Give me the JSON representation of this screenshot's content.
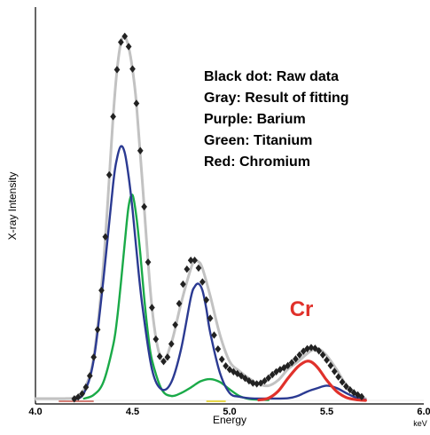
{
  "chart_data": {
    "type": "line",
    "title": "",
    "xlabel": "Energy",
    "ylabel": "X-ray Intensity",
    "x_unit": "keV",
    "xlim": [
      4.0,
      6.0
    ],
    "ylim": [
      0,
      1.0
    ],
    "x_ticks": [
      {
        "value": 4.0,
        "label": "4.0"
      },
      {
        "value": 4.5,
        "label": "4.5"
      },
      {
        "value": 5.0,
        "label": "5.0"
      },
      {
        "value": 5.5,
        "label": "5.5"
      },
      {
        "value": 6.0,
        "label": "6.0"
      }
    ],
    "legend_text": [
      "Black dot: Raw data",
      "Gray: Result of fitting",
      "Purple: Barium",
      "Green: Titanium",
      "Red: Chromium"
    ],
    "annotation": {
      "text": "Cr",
      "x": 5.37,
      "y": 0.23,
      "color": "#e0312b"
    },
    "grid": false,
    "legend_position": "top-right",
    "colors": {
      "raw": "#222222",
      "fit": "#c2c2c2",
      "barium": "#2b3a92",
      "titanium": "#1aaa48",
      "chromium": "#e0312b",
      "baseline_yellow": "#e8d84a",
      "baseline_red": "#c0392b"
    },
    "series": [
      {
        "name": "Black dot: Raw data",
        "style": "diamond-markers",
        "x": [
          4.2,
          4.22,
          4.24,
          4.26,
          4.28,
          4.3,
          4.32,
          4.34,
          4.36,
          4.38,
          4.4,
          4.42,
          4.44,
          4.46,
          4.48,
          4.5,
          4.52,
          4.54,
          4.56,
          4.58,
          4.6,
          4.62,
          4.64,
          4.66,
          4.68,
          4.7,
          4.72,
          4.74,
          4.76,
          4.78,
          4.8,
          4.82,
          4.84,
          4.86,
          4.88,
          4.9,
          4.92,
          4.94,
          4.96,
          4.98,
          5.0,
          5.02,
          5.04,
          5.06,
          5.08,
          5.1,
          5.12,
          5.14,
          5.16,
          5.18,
          5.2,
          5.22,
          5.24,
          5.26,
          5.28,
          5.3,
          5.32,
          5.34,
          5.36,
          5.38,
          5.4,
          5.42,
          5.44,
          5.46,
          5.48,
          5.5,
          5.52,
          5.54,
          5.56,
          5.58,
          5.6,
          5.62,
          5.64,
          5.66,
          5.68
        ],
        "values": [
          0.004,
          0.009,
          0.018,
          0.036,
          0.067,
          0.118,
          0.193,
          0.3,
          0.446,
          0.615,
          0.774,
          0.902,
          0.977,
          0.993,
          0.965,
          0.904,
          0.81,
          0.681,
          0.528,
          0.377,
          0.253,
          0.167,
          0.12,
          0.106,
          0.118,
          0.154,
          0.206,
          0.264,
          0.317,
          0.358,
          0.382,
          0.382,
          0.361,
          0.323,
          0.274,
          0.224,
          0.178,
          0.14,
          0.112,
          0.094,
          0.084,
          0.078,
          0.073,
          0.067,
          0.06,
          0.053,
          0.047,
          0.045,
          0.047,
          0.053,
          0.061,
          0.07,
          0.078,
          0.084,
          0.089,
          0.095,
          0.103,
          0.113,
          0.124,
          0.134,
          0.141,
          0.144,
          0.142,
          0.135,
          0.124,
          0.11,
          0.095,
          0.079,
          0.064,
          0.05,
          0.038,
          0.029,
          0.021,
          0.015,
          0.01
        ]
      },
      {
        "name": "Gray: Result of fitting",
        "style": "line",
        "x": [
          4.0,
          4.05,
          4.1,
          4.15,
          4.2,
          4.25,
          4.3,
          4.35,
          4.4,
          4.42,
          4.44,
          4.46,
          4.48,
          4.5,
          4.52,
          4.55,
          4.6,
          4.65,
          4.7,
          4.75,
          4.8,
          4.82,
          4.84,
          4.86,
          4.9,
          4.95,
          5.0,
          5.05,
          5.1,
          5.15,
          5.2,
          5.25,
          5.3,
          5.35,
          5.4,
          5.43,
          5.46,
          5.5,
          5.55,
          5.6,
          5.65,
          5.7
        ],
        "values": [
          0.005,
          0.005,
          0.005,
          0.005,
          0.008,
          0.03,
          0.118,
          0.37,
          0.772,
          0.9,
          0.975,
          0.991,
          0.963,
          0.902,
          0.809,
          0.6,
          0.253,
          0.11,
          0.157,
          0.265,
          0.359,
          0.38,
          0.378,
          0.36,
          0.285,
          0.179,
          0.106,
          0.08,
          0.06,
          0.045,
          0.04,
          0.055,
          0.085,
          0.105,
          0.128,
          0.138,
          0.14,
          0.122,
          0.085,
          0.042,
          0.015,
          0.005
        ]
      },
      {
        "name": "Purple: Barium",
        "style": "line",
        "x": [
          4.2,
          4.25,
          4.3,
          4.35,
          4.4,
          4.42,
          4.44,
          4.46,
          4.48,
          4.5,
          4.52,
          4.55,
          4.6,
          4.65,
          4.7,
          4.75,
          4.8,
          4.82,
          4.84,
          4.86,
          4.88,
          4.9,
          4.95,
          5.0,
          5.05,
          5.1,
          5.15,
          5.2,
          5.3,
          5.35,
          5.4,
          5.45,
          5.5,
          5.55,
          5.6,
          5.65,
          5.7
        ],
        "values": [
          0.002,
          0.02,
          0.11,
          0.33,
          0.59,
          0.66,
          0.693,
          0.675,
          0.61,
          0.52,
          0.41,
          0.26,
          0.085,
          0.03,
          0.05,
          0.14,
          0.28,
          0.31,
          0.318,
          0.3,
          0.25,
          0.185,
          0.075,
          0.02,
          0.01,
          0.006,
          0.005,
          0.005,
          0.006,
          0.012,
          0.024,
          0.033,
          0.04,
          0.034,
          0.02,
          0.008,
          0.002
        ]
      },
      {
        "name": "Green: Titanium",
        "style": "line",
        "x": [
          4.25,
          4.3,
          4.35,
          4.4,
          4.42,
          4.44,
          4.46,
          4.48,
          4.5,
          4.52,
          4.54,
          4.56,
          4.58,
          4.6,
          4.65,
          4.7,
          4.75,
          4.8,
          4.85,
          4.9,
          4.95,
          5.0,
          5.05,
          5.1,
          5.15,
          5.2
        ],
        "values": [
          0.005,
          0.015,
          0.05,
          0.15,
          0.22,
          0.32,
          0.43,
          0.53,
          0.56,
          0.5,
          0.4,
          0.28,
          0.18,
          0.11,
          0.03,
          0.012,
          0.02,
          0.035,
          0.052,
          0.058,
          0.05,
          0.03,
          0.012,
          0.004,
          0.002,
          0.001
        ]
      },
      {
        "name": "Red: Chromium",
        "style": "line",
        "x": [
          5.15,
          5.2,
          5.25,
          5.3,
          5.35,
          5.38,
          5.4,
          5.42,
          5.44,
          5.46,
          5.48,
          5.5,
          5.55,
          5.6,
          5.65,
          5.7
        ],
        "values": [
          0.001,
          0.006,
          0.025,
          0.06,
          0.091,
          0.103,
          0.107,
          0.105,
          0.097,
          0.085,
          0.07,
          0.055,
          0.025,
          0.008,
          0.002,
          0.0
        ]
      }
    ]
  }
}
